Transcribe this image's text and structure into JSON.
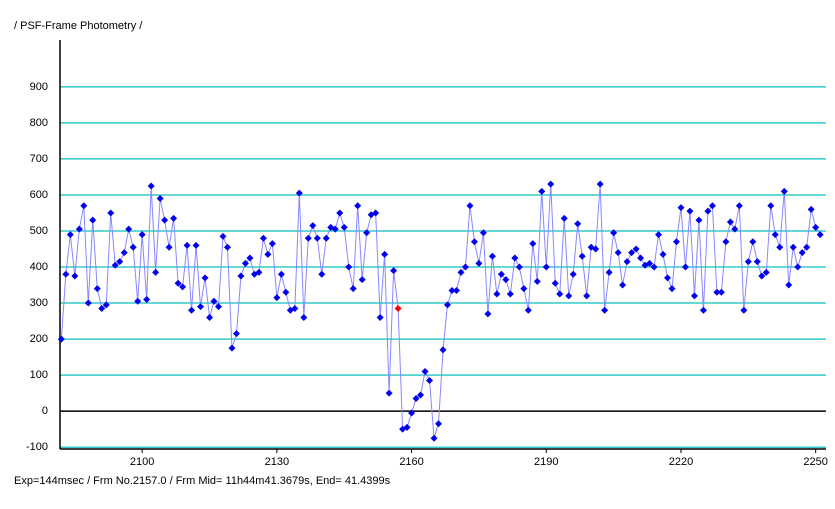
{
  "chart_data": {
    "type": "line",
    "title": "/ PSF-Frame Photometry /",
    "footer": "Exp=144msec / Frm No.2157.0 / Frm Mid= 11h44m41.3679s, End= 41.4399s",
    "x": [
      2082,
      2083,
      2084,
      2085,
      2086,
      2087,
      2088,
      2089,
      2090,
      2091,
      2092,
      2093,
      2094,
      2095,
      2096,
      2097,
      2098,
      2099,
      2100,
      2101,
      2102,
      2103,
      2104,
      2105,
      2106,
      2107,
      2108,
      2109,
      2110,
      2111,
      2112,
      2113,
      2114,
      2115,
      2116,
      2117,
      2118,
      2119,
      2120,
      2121,
      2122,
      2123,
      2124,
      2125,
      2126,
      2127,
      2128,
      2129,
      2130,
      2131,
      2132,
      2133,
      2134,
      2135,
      2136,
      2137,
      2138,
      2139,
      2140,
      2141,
      2142,
      2143,
      2144,
      2145,
      2146,
      2147,
      2148,
      2149,
      2150,
      2151,
      2152,
      2153,
      2154,
      2155,
      2156,
      2157,
      2158,
      2159,
      2160,
      2161,
      2162,
      2163,
      2164,
      2165,
      2166,
      2167,
      2168,
      2169,
      2170,
      2171,
      2172,
      2173,
      2174,
      2175,
      2176,
      2177,
      2178,
      2179,
      2180,
      2181,
      2182,
      2183,
      2184,
      2185,
      2186,
      2187,
      2188,
      2189,
      2190,
      2191,
      2192,
      2193,
      2194,
      2195,
      2196,
      2197,
      2198,
      2199,
      2200,
      2201,
      2202,
      2203,
      2204,
      2205,
      2206,
      2207,
      2208,
      2209,
      2210,
      2211,
      2212,
      2213,
      2214,
      2215,
      2216,
      2217,
      2218,
      2219,
      2220,
      2221,
      2222,
      2223,
      2224,
      2225,
      2226,
      2227,
      2228,
      2229,
      2230,
      2231,
      2232,
      2233,
      2234,
      2235,
      2236,
      2237,
      2238,
      2239,
      2240,
      2241,
      2242,
      2243,
      2244,
      2245,
      2246,
      2247,
      2248,
      2249,
      2250,
      2251
    ],
    "values": [
      200,
      380,
      490,
      375,
      505,
      570,
      300,
      530,
      340,
      285,
      295,
      550,
      405,
      415,
      440,
      505,
      455,
      305,
      490,
      310,
      625,
      385,
      590,
      530,
      455,
      535,
      355,
      345,
      460,
      280,
      460,
      290,
      370,
      260,
      305,
      290,
      485,
      455,
      175,
      215,
      375,
      410,
      425,
      380,
      385,
      480,
      435,
      465,
      315,
      380,
      330,
      280,
      285,
      605,
      260,
      480,
      515,
      480,
      380,
      480,
      510,
      505,
      550,
      510,
      400,
      340,
      570,
      365,
      495,
      545,
      550,
      260,
      435,
      50,
      390,
      285,
      -50,
      -45,
      -5,
      35,
      45,
      110,
      85,
      -75,
      -35,
      170,
      295,
      335,
      335,
      385,
      400,
      570,
      470,
      410,
      495,
      270,
      430,
      325,
      380,
      365,
      325,
      425,
      400,
      340,
      280,
      465,
      360,
      610,
      400,
      630,
      355,
      325,
      535,
      320,
      380,
      520,
      430,
      320,
      455,
      450,
      630,
      280,
      385,
      495,
      440,
      350,
      415,
      440,
      450,
      425,
      405,
      410,
      400,
      490,
      435,
      370,
      340,
      470,
      565,
      400,
      555,
      320,
      530,
      280,
      555,
      570,
      330,
      330,
      470,
      525,
      505,
      570,
      280,
      415,
      470,
      415,
      375,
      385,
      570,
      490,
      455,
      610,
      350,
      455,
      400,
      440,
      455,
      560,
      510,
      490
    ],
    "line_color": "#8888ff",
    "marker_color": "#0000ee",
    "highlight_x": 2157,
    "highlight_color": "#ff0000",
    "xlim": [
      2081.7,
      2252.3
    ],
    "ylim": [
      -105,
      1030
    ],
    "xticks": [
      2100,
      2130,
      2160,
      2190,
      2220,
      2250
    ],
    "yticks": [
      -100,
      0,
      100,
      200,
      300,
      400,
      500,
      600,
      700,
      800,
      900
    ],
    "grid": true,
    "grid_color": "#33cccc",
    "zero_line_color": "#000000"
  }
}
